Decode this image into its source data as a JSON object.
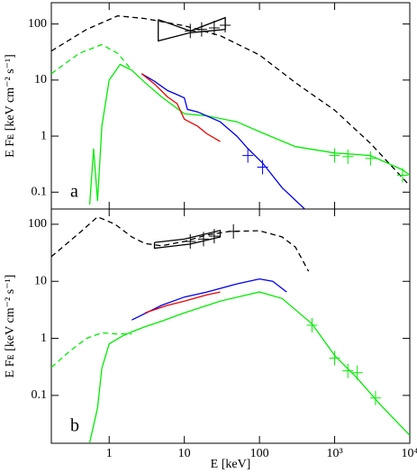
{
  "chart_data": [
    {
      "type": "line",
      "log": true,
      "panel_label": "a",
      "y_label": "E Fᴇ [keV cm⁻² s⁻¹]",
      "xlim": [
        0.17,
        10000
      ],
      "ylim": [
        0.05,
        240
      ],
      "yticks": [
        0.1,
        1,
        10,
        100
      ],
      "series": [
        {
          "color": "#000000",
          "dash": true,
          "style": "line",
          "x": [
            0.17,
            0.5,
            1.3,
            3,
            10,
            30,
            100,
            300,
            1000,
            3000,
            8000,
            10000
          ],
          "values": [
            33,
            80,
            140,
            125,
            93,
            62,
            28,
            9,
            2.9,
            0.74,
            0.18,
            0.13
          ]
        },
        {
          "color": "#000000",
          "dash": false,
          "style": "line",
          "x": [
            4.5,
            12,
            35,
            35,
            12,
            4.5,
            4.5
          ],
          "values": [
            120,
            75,
            130,
            80,
            70,
            50,
            120
          ]
        },
        {
          "color": "#000000",
          "dash": false,
          "style": "cross",
          "x": [
            12,
            17,
            25,
            35
          ],
          "values": [
            75,
            80,
            85,
            95
          ]
        },
        {
          "color": "#00ee00",
          "dash": true,
          "style": "line",
          "x": [
            0.17,
            0.4,
            0.8,
            1.3,
            2
          ],
          "values": [
            13,
            30,
            43,
            30,
            15
          ]
        },
        {
          "color": "#00ee00",
          "dash": false,
          "style": "line",
          "x": [
            0.55,
            0.62,
            0.7,
            0.8,
            1,
            1.4,
            2,
            3,
            5,
            10,
            20,
            50,
            100,
            300,
            1000,
            3000,
            8000,
            10000
          ],
          "values": [
            0.06,
            0.6,
            0.07,
            1.5,
            10,
            19,
            15,
            9,
            5,
            2.5,
            2.3,
            1.8,
            1.2,
            0.65,
            0.5,
            0.45,
            0.25,
            0.2
          ]
        },
        {
          "color": "#00ee00",
          "dash": false,
          "style": "cross",
          "x": [
            1000,
            1500,
            3000,
            8000
          ],
          "values": [
            0.45,
            0.43,
            0.4,
            0.2
          ]
        },
        {
          "color": "#0000ee",
          "dash": false,
          "style": "line",
          "x": [
            2.7,
            4,
            6,
            8,
            10,
            11,
            15,
            30,
            50,
            70,
            110,
            200,
            400
          ],
          "values": [
            13,
            9.5,
            6.5,
            5.5,
            4.8,
            3,
            2.7,
            1.8,
            1,
            0.6,
            0.33,
            0.12,
            0.05
          ]
        },
        {
          "color": "#0000ee",
          "dash": false,
          "style": "cross",
          "x": [
            70,
            110
          ],
          "values": [
            0.45,
            0.28
          ]
        },
        {
          "color": "#ee0000",
          "dash": false,
          "style": "line",
          "x": [
            2.7,
            4,
            6,
            8,
            10,
            15,
            20,
            30
          ],
          "values": [
            13,
            8.5,
            5,
            3.8,
            2,
            1.5,
            1.1,
            0.8
          ]
        }
      ]
    },
    {
      "type": "line",
      "log": true,
      "panel_label": "b",
      "y_label": "E Fᴇ [keV cm⁻² s⁻¹]",
      "x_label": "E [keV]",
      "xlim": [
        0.17,
        10000
      ],
      "ylim": [
        0.0145,
        185
      ],
      "yticks": [
        0.1,
        1,
        10,
        100
      ],
      "xticks": [
        1,
        10,
        100,
        {
          "value": 1000,
          "label": "10³"
        },
        {
          "value": 10000,
          "label": "10⁴"
        }
      ],
      "series": [
        {
          "color": "#000000",
          "dash": true,
          "style": "line",
          "x": [
            0.17,
            0.4,
            0.7,
            1.2,
            2,
            3,
            5,
            10,
            20,
            40,
            100,
            200,
            300,
            450
          ],
          "values": [
            27,
            70,
            135,
            100,
            60,
            46,
            42,
            50,
            65,
            75,
            77,
            60,
            40,
            15
          ]
        },
        {
          "color": "#000000",
          "dash": false,
          "style": "line",
          "x": [
            4,
            10,
            30,
            30,
            12,
            4,
            4
          ],
          "values": [
            48,
            55,
            78,
            60,
            45,
            38,
            48
          ]
        },
        {
          "color": "#000000",
          "dash": false,
          "style": "cross",
          "x": [
            12,
            18,
            25,
            45
          ],
          "values": [
            50,
            55,
            62,
            75
          ]
        },
        {
          "color": "#00ee00",
          "dash": true,
          "style": "line",
          "x": [
            0.17,
            0.3,
            0.5,
            0.8,
            1.2,
            2
          ],
          "values": [
            0.31,
            0.6,
            1,
            1.25,
            1.2,
            1.2
          ]
        },
        {
          "color": "#00ee00",
          "dash": false,
          "style": "line",
          "x": [
            0.55,
            0.7,
            0.8,
            1,
            1.5,
            2,
            3,
            5,
            10,
            30,
            100,
            200,
            500,
            1000,
            2000,
            4000,
            10000
          ],
          "values": [
            0.015,
            0.06,
            0.3,
            0.8,
            1.1,
            1.3,
            1.6,
            2,
            2.8,
            4.5,
            6.5,
            5,
            1.8,
            0.5,
            0.2,
            0.07,
            0.02
          ]
        },
        {
          "color": "#00ee00",
          "dash": false,
          "style": "cross",
          "x": [
            500,
            1000,
            1500,
            2000,
            3500
          ],
          "values": [
            1.7,
            0.45,
            0.27,
            0.25,
            0.09
          ]
        },
        {
          "color": "#0000ee",
          "dash": false,
          "style": "line",
          "x": [
            2,
            5,
            10,
            20,
            50,
            100,
            150,
            230
          ],
          "values": [
            2.1,
            3.8,
            5.3,
            6.5,
            9,
            11,
            10,
            6.5
          ]
        },
        {
          "color": "#ee0000",
          "dash": false,
          "style": "line",
          "x": [
            3,
            6,
            10,
            20,
            30
          ],
          "values": [
            2.8,
            3.8,
            4.5,
            5.8,
            6.5
          ]
        }
      ]
    }
  ]
}
